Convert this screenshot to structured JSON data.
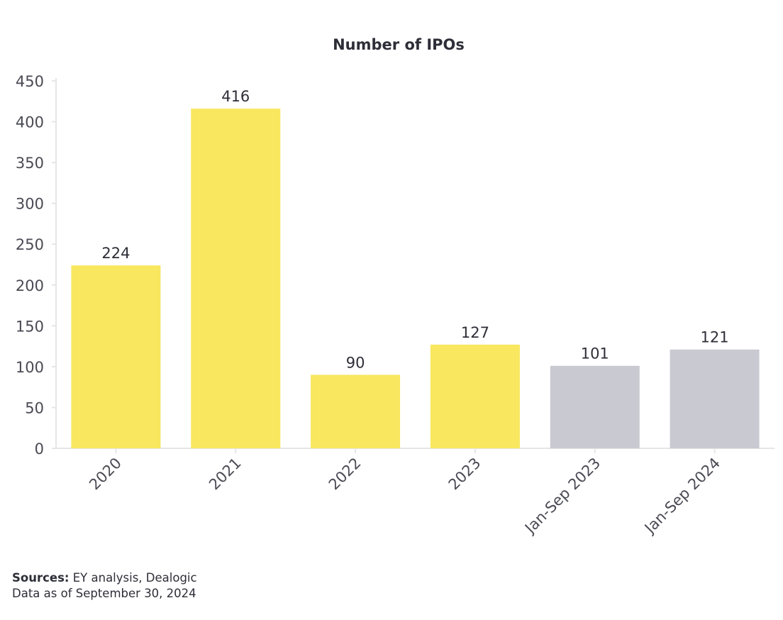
{
  "chart_data": {
    "type": "bar",
    "title": "Number of IPOs",
    "categories": [
      "2020",
      "2021",
      "2022",
      "2023",
      "Jan-Sep 2023",
      "Jan-Sep 2024"
    ],
    "values": [
      224,
      416,
      90,
      127,
      101,
      121
    ],
    "bar_colors": [
      "#f8e75f",
      "#f8e75f",
      "#f8e75f",
      "#f8e75f",
      "#c9c9d1",
      "#c9c9d1"
    ],
    "ylim": [
      0,
      450
    ],
    "yticks": [
      0,
      50,
      100,
      150,
      200,
      250,
      300,
      350,
      400,
      450
    ],
    "xlabel": "",
    "ylabel": "",
    "grid": false,
    "data_labels": true
  },
  "footer": {
    "sources_label": "Sources:",
    "sources_text": "EY analysis, Dealogic",
    "data_as_of": "Data as of September 30, 2024"
  },
  "colors": {
    "text": "#2e2e38",
    "axis": "#e6e6e6",
    "highlight_bar": "#f8e75f",
    "comparison_bar": "#c9c9d1"
  }
}
